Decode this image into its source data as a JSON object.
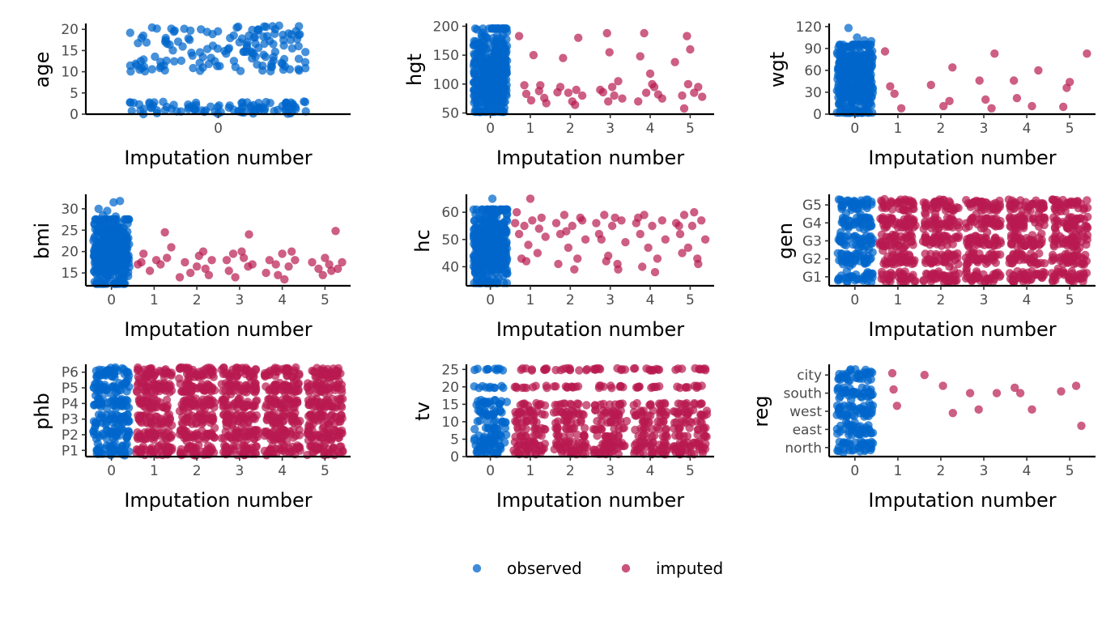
{
  "colors": {
    "observed": "#0066CC",
    "imputed": "#B81A50"
  },
  "legend": {
    "observed_label": "observed",
    "imputed_label": "imputed",
    "position": "bottom"
  },
  "chart_data": [
    {
      "type": "scatter",
      "variable": "age",
      "xlabel": "Imputation number",
      "ylabel": "age",
      "x_ticks": [
        "0"
      ],
      "y_ticks": [
        "0",
        "5",
        "10",
        "15",
        "20"
      ],
      "ylim": [
        0,
        21
      ],
      "series": [
        {
          "name": "observed",
          "x": 0,
          "band": [
            0,
            21
          ],
          "clusters": [
            [
              0,
              3
            ],
            [
              10,
              21
            ]
          ],
          "jitter_width": 0.7
        },
        {
          "name": "imputed",
          "points": []
        }
      ]
    },
    {
      "type": "scatter",
      "variable": "hgt",
      "xlabel": "Imputation number",
      "ylabel": "hgt",
      "x_ticks": [
        "0",
        "1",
        "2",
        "3",
        "4",
        "5"
      ],
      "y_ticks": [
        "50",
        "100",
        "150",
        "200"
      ],
      "ylim": [
        48,
        202
      ],
      "series": [
        {
          "name": "observed",
          "x": 0,
          "band": [
            52,
            196
          ]
        },
        {
          "name": "imputed",
          "points": [
            [
              0.72,
              183
            ],
            [
              1.08,
              150
            ],
            [
              1.22,
              88
            ],
            [
              1.35,
              76
            ],
            [
              0.9,
              83
            ],
            [
              1.02,
              72
            ],
            [
              1.25,
              98
            ],
            [
              1.4,
              67
            ],
            [
              0.85,
              98
            ],
            [
              1.75,
              95
            ],
            [
              1.82,
              145
            ],
            [
              2.2,
              180
            ],
            [
              1.95,
              85
            ],
            [
              2.05,
              70
            ],
            [
              2.3,
              80
            ],
            [
              2.15,
              90
            ],
            [
              1.68,
              86
            ],
            [
              2.12,
              64
            ],
            [
              2.92,
              188
            ],
            [
              2.98,
              155
            ],
            [
              3.2,
              105
            ],
            [
              2.75,
              90
            ],
            [
              3.1,
              80
            ],
            [
              3.3,
              75
            ],
            [
              2.95,
              70
            ],
            [
              3.05,
              95
            ],
            [
              2.82,
              86
            ],
            [
              3.75,
              148
            ],
            [
              3.85,
              188
            ],
            [
              4.0,
              118
            ],
            [
              4.1,
              95
            ],
            [
              3.9,
              85
            ],
            [
              4.2,
              82
            ],
            [
              3.7,
              70
            ],
            [
              4.3,
              75
            ],
            [
              4.05,
              100
            ],
            [
              4.62,
              138
            ],
            [
              4.92,
              183
            ],
            [
              5.0,
              160
            ],
            [
              5.2,
              95
            ],
            [
              5.1,
              85
            ],
            [
              4.8,
              80
            ],
            [
              4.95,
              100
            ],
            [
              5.3,
              78
            ],
            [
              4.85,
              58
            ]
          ]
        }
      ]
    },
    {
      "type": "scatter",
      "variable": "wgt",
      "xlabel": "Imputation number",
      "ylabel": "wgt",
      "x_ticks": [
        "0",
        "1",
        "2",
        "3",
        "4",
        "5"
      ],
      "y_ticks": [
        "0",
        "30",
        "60",
        "90",
        "120"
      ],
      "ylim": [
        0,
        122
      ],
      "series": [
        {
          "name": "observed",
          "x": 0,
          "band": [
            2,
            95
          ],
          "outliers": [
            [
              -0.15,
              118
            ],
            [
              0.38,
              100
            ],
            [
              0.22,
              101
            ],
            [
              0.05,
              105
            ]
          ]
        },
        {
          "name": "imputed",
          "points": [
            [
              0.7,
              86
            ],
            [
              0.82,
              38
            ],
            [
              0.92,
              28
            ],
            [
              1.08,
              8
            ],
            [
              1.77,
              40
            ],
            [
              2.06,
              11
            ],
            [
              2.2,
              18
            ],
            [
              2.27,
              64
            ],
            [
              2.9,
              46
            ],
            [
              3.04,
              20
            ],
            [
              3.18,
              8
            ],
            [
              3.25,
              83
            ],
            [
              3.7,
              46
            ],
            [
              3.77,
              22
            ],
            [
              4.12,
              11
            ],
            [
              4.27,
              60
            ],
            [
              4.85,
              10
            ],
            [
              4.93,
              36
            ],
            [
              5.0,
              44
            ],
            [
              5.4,
              83
            ]
          ]
        }
      ]
    },
    {
      "type": "scatter",
      "variable": "bmi",
      "xlabel": "Imputation number",
      "ylabel": "bmi",
      "x_ticks": [
        "0",
        "1",
        "2",
        "3",
        "4",
        "5"
      ],
      "y_ticks": [
        "15",
        "20",
        "25",
        "30"
      ],
      "ylim": [
        12,
        33
      ],
      "series": [
        {
          "name": "observed",
          "x": 0,
          "band": [
            12.5,
            27.5
          ],
          "outliers": [
            [
              -0.2,
              28.5
            ],
            [
              -0.1,
              29.5
            ],
            [
              0.05,
              31.5
            ],
            [
              0.2,
              31.8
            ],
            [
              -0.3,
              30
            ],
            [
              0.1,
              28.2
            ]
          ]
        },
        {
          "name": "imputed",
          "points": [
            [
              0.62,
              17
            ],
            [
              0.75,
              19.5
            ],
            [
              0.9,
              15.5
            ],
            [
              1.05,
              18
            ],
            [
              1.25,
              24.5
            ],
            [
              1.3,
              18.5
            ],
            [
              1.15,
              17
            ],
            [
              0.7,
              17.5
            ],
            [
              1.4,
              21
            ],
            [
              1.72,
              17.5
            ],
            [
              1.85,
              15
            ],
            [
              2.05,
              19
            ],
            [
              2.15,
              20
            ],
            [
              2.2,
              16
            ],
            [
              2.35,
              18
            ],
            [
              1.6,
              14
            ],
            [
              2.0,
              16.5
            ],
            [
              2.28,
              14.5
            ],
            [
              2.7,
              18
            ],
            [
              2.85,
              19.5
            ],
            [
              3.05,
              20
            ],
            [
              3.2,
              16.5
            ],
            [
              3.3,
              17
            ],
            [
              2.9,
              14
            ],
            [
              3.1,
              18.5
            ],
            [
              3.22,
              24
            ],
            [
              2.75,
              15.5
            ],
            [
              3.7,
              18
            ],
            [
              3.85,
              17
            ],
            [
              4.0,
              19.5
            ],
            [
              4.15,
              16.5
            ],
            [
              4.3,
              18
            ],
            [
              3.9,
              14.5
            ],
            [
              4.05,
              13.5
            ],
            [
              4.22,
              20
            ],
            [
              3.62,
              15
            ],
            [
              4.7,
              17.5
            ],
            [
              4.85,
              16
            ],
            [
              5.0,
              18.5
            ],
            [
              5.1,
              17
            ],
            [
              5.25,
              24.8
            ],
            [
              5.3,
              16
            ],
            [
              4.95,
              14.5
            ],
            [
              5.4,
              17.5
            ],
            [
              5.15,
              15.5
            ]
          ]
        }
      ]
    },
    {
      "type": "scatter",
      "variable": "hc",
      "xlabel": "Imputation number",
      "ylabel": "hc",
      "x_ticks": [
        "0",
        "1",
        "2",
        "3",
        "4",
        "5"
      ],
      "y_ticks": [
        "40",
        "50",
        "60"
      ],
      "ylim": [
        33,
        66
      ],
      "series": [
        {
          "name": "observed",
          "x": 0,
          "band": [
            34,
            61
          ],
          "outliers": [
            [
              0.05,
              65
            ]
          ]
        },
        {
          "name": "imputed",
          "points": [
            [
              0.62,
              56
            ],
            [
              0.72,
              52
            ],
            [
              0.85,
              55
            ],
            [
              0.95,
              48
            ],
            [
              1.05,
              57
            ],
            [
              1.18,
              45
            ],
            [
              1.28,
              58
            ],
            [
              1.38,
              51
            ],
            [
              0.9,
              42
            ],
            [
              1.0,
              65
            ],
            [
              0.78,
              43
            ],
            [
              1.22,
              54
            ],
            [
              0.66,
              60
            ],
            [
              1.65,
              56
            ],
            [
              1.75,
              52
            ],
            [
              1.85,
              59
            ],
            [
              1.95,
              47
            ],
            [
              2.05,
              55
            ],
            [
              2.18,
              43
            ],
            [
              2.3,
              57
            ],
            [
              2.38,
              50
            ],
            [
              1.7,
              41
            ],
            [
              2.1,
              39
            ],
            [
              1.9,
              53
            ],
            [
              2.25,
              58
            ],
            [
              2.65,
              56
            ],
            [
              2.72,
              52
            ],
            [
              2.85,
              59
            ],
            [
              2.95,
              44
            ],
            [
              3.05,
              55
            ],
            [
              3.18,
              41
            ],
            [
              3.28,
              57
            ],
            [
              3.38,
              49
            ],
            [
              2.9,
              42
            ],
            [
              3.2,
              39
            ],
            [
              3.12,
              58
            ],
            [
              2.78,
              50
            ],
            [
              3.65,
              56
            ],
            [
              3.75,
              52
            ],
            [
              3.85,
              59
            ],
            [
              3.95,
              47
            ],
            [
              4.05,
              55
            ],
            [
              4.18,
              43
            ],
            [
              4.3,
              57
            ],
            [
              4.38,
              50
            ],
            [
              3.8,
              40
            ],
            [
              4.12,
              38
            ],
            [
              3.7,
              58
            ],
            [
              4.65,
              56
            ],
            [
              4.75,
              52
            ],
            [
              4.85,
              59
            ],
            [
              4.95,
              47
            ],
            [
              5.05,
              55
            ],
            [
              5.18,
              43
            ],
            [
              5.28,
              57
            ],
            [
              5.38,
              50
            ],
            [
              4.8,
              45
            ],
            [
              5.2,
              41
            ],
            [
              4.72,
              55
            ],
            [
              5.1,
              60
            ]
          ]
        }
      ]
    },
    {
      "type": "scatter",
      "variable": "gen",
      "xlabel": "Imputation number",
      "ylabel": "gen",
      "x_ticks": [
        "0",
        "1",
        "2",
        "3",
        "4",
        "5"
      ],
      "y_ticks": [
        "G1",
        "G2",
        "G3",
        "G4",
        "G5"
      ],
      "ylim": [
        0.5,
        5.5
      ],
      "series": [
        {
          "name": "observed",
          "x": 0,
          "categorical_band": [
            1,
            5
          ]
        },
        {
          "name": "imputed",
          "x": [
            1,
            2,
            3,
            4,
            5
          ],
          "categorical_band": [
            1,
            5
          ]
        }
      ]
    },
    {
      "type": "scatter",
      "variable": "phb",
      "xlabel": "Imputation number",
      "ylabel": "phb",
      "x_ticks": [
        "0",
        "1",
        "2",
        "3",
        "4",
        "5"
      ],
      "y_ticks": [
        "P1",
        "P2",
        "P3",
        "P4",
        "P5",
        "P6"
      ],
      "ylim": [
        0.6,
        6.4
      ],
      "series": [
        {
          "name": "observed",
          "x": 0,
          "categorical_band": [
            1,
            6
          ]
        },
        {
          "name": "imputed",
          "x": [
            1,
            2,
            3,
            4,
            5
          ],
          "categorical_band": [
            1,
            6
          ]
        }
      ]
    },
    {
      "type": "scatter",
      "variable": "tv",
      "xlabel": "Imputation number",
      "ylabel": "tv",
      "x_ticks": [
        "0",
        "1",
        "2",
        "3",
        "4",
        "5"
      ],
      "y_ticks": [
        "0",
        "5",
        "10",
        "15",
        "20",
        "25"
      ],
      "ylim": [
        0,
        26
      ],
      "series": [
        {
          "name": "observed",
          "x": 0,
          "rows": [
            1,
            2,
            3,
            4,
            5,
            6,
            8,
            10,
            12,
            13,
            15,
            16,
            20,
            25
          ]
        },
        {
          "name": "imputed",
          "x": [
            1,
            2,
            3,
            4,
            5
          ],
          "rows": [
            1,
            2,
            3,
            4,
            6,
            8,
            10,
            12,
            13,
            15,
            20,
            25
          ]
        }
      ]
    },
    {
      "type": "scatter",
      "variable": "reg",
      "xlabel": "Imputation number",
      "ylabel": "reg",
      "x_ticks": [
        "0",
        "1",
        "2",
        "3",
        "4",
        "5"
      ],
      "y_ticks": [
        "north",
        "east",
        "west",
        "south",
        "city"
      ],
      "ylim": [
        0.5,
        5.5
      ],
      "series": [
        {
          "name": "observed",
          "x": 0,
          "categorical_band": [
            1,
            5
          ]
        },
        {
          "name": "imputed",
          "points": [
            [
              0.87,
              5.1
            ],
            [
              0.9,
              4.2
            ],
            [
              0.98,
              3.3
            ],
            [
              1.62,
              5.0
            ],
            [
              2.05,
              4.4
            ],
            [
              2.28,
              2.9
            ],
            [
              2.68,
              4.0
            ],
            [
              2.88,
              3.1
            ],
            [
              3.3,
              4.0
            ],
            [
              3.72,
              4.3
            ],
            [
              3.85,
              4.0
            ],
            [
              4.12,
              3.1
            ],
            [
              4.8,
              4.1
            ],
            [
              5.15,
              4.4
            ],
            [
              5.27,
              2.2
            ]
          ]
        }
      ]
    }
  ]
}
